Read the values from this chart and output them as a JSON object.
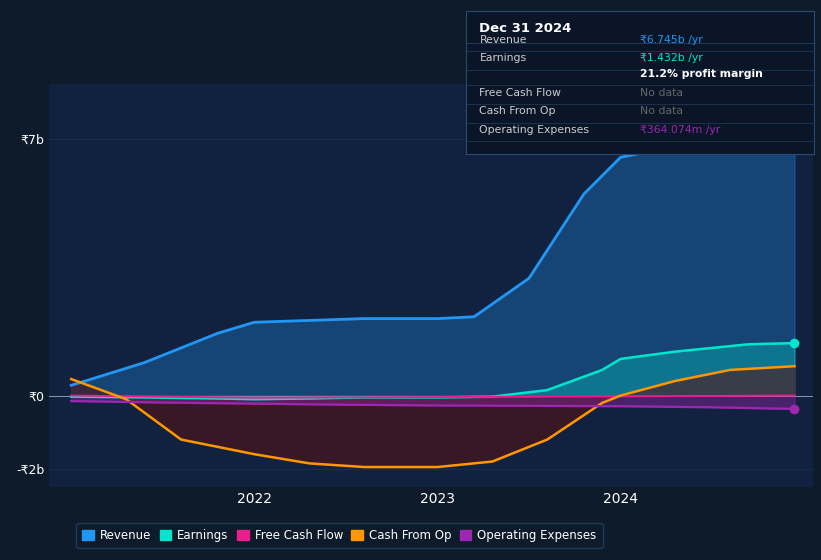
{
  "bg_color": "#0d1b2a",
  "plot_bg_color": "#112240",
  "grid_color": "#1a3050",
  "text_color": "#ffffff",
  "ylim": [
    -2500000000.0,
    8500000000.0
  ],
  "yticks": [
    -2000000000.0,
    0,
    7000000000.0
  ],
  "ytick_labels": [
    "-₹2b",
    "₹0",
    "₹7b"
  ],
  "xtick_labels": [
    "2022",
    "2023",
    "2024"
  ],
  "series": {
    "revenue": {
      "color": "#2196f3",
      "label": "Revenue",
      "x": [
        2021.0,
        2021.4,
        2021.8,
        2022.0,
        2022.3,
        2022.6,
        2023.0,
        2023.2,
        2023.5,
        2023.8,
        2024.0,
        2024.3,
        2024.7,
        2024.95
      ],
      "y": [
        280000000.0,
        900000000.0,
        1700000000.0,
        2000000000.0,
        2050000000.0,
        2100000000.0,
        2100000000.0,
        2150000000.0,
        3200000000.0,
        5500000000.0,
        6500000000.0,
        6800000000.0,
        6850000000.0,
        6745000000.0
      ]
    },
    "earnings": {
      "color": "#00e5cc",
      "label": "Earnings",
      "x": [
        2021.0,
        2021.4,
        2021.8,
        2022.0,
        2022.3,
        2022.6,
        2023.0,
        2023.3,
        2023.6,
        2023.9,
        2024.0,
        2024.3,
        2024.7,
        2024.95
      ],
      "y": [
        -30000000.0,
        -50000000.0,
        -80000000.0,
        -100000000.0,
        -80000000.0,
        -50000000.0,
        -50000000.0,
        -30000000.0,
        150000000.0,
        700000000.0,
        1000000000.0,
        1200000000.0,
        1400000000.0,
        1432000000.0
      ]
    },
    "free_cash_flow": {
      "color": "#e91e8c",
      "label": "Free Cash Flow",
      "x": [
        2021.0,
        2021.5,
        2022.0,
        2022.5,
        2023.0,
        2023.5,
        2024.0,
        2024.5,
        2024.95
      ],
      "y": [
        0.0,
        -30000000.0,
        -60000000.0,
        -50000000.0,
        -40000000.0,
        -30000000.0,
        -20000000.0,
        -10000000.0,
        0.0
      ]
    },
    "cash_from_op": {
      "color": "#ff9800",
      "label": "Cash From Op",
      "x": [
        2021.0,
        2021.3,
        2021.6,
        2022.0,
        2022.3,
        2022.6,
        2023.0,
        2023.3,
        2023.6,
        2023.9,
        2024.0,
        2024.3,
        2024.6,
        2024.95
      ],
      "y": [
        450000000.0,
        -100000000.0,
        -1200000000.0,
        -1600000000.0,
        -1850000000.0,
        -1950000000.0,
        -1950000000.0,
        -1800000000.0,
        -1200000000.0,
        -200000000.0,
        0.0,
        400000000.0,
        700000000.0,
        800000000.0
      ]
    },
    "operating_expenses": {
      "color": "#9c27b0",
      "label": "Operating Expenses",
      "x": [
        2021.0,
        2021.5,
        2022.0,
        2022.5,
        2023.0,
        2023.5,
        2024.0,
        2024.5,
        2024.95
      ],
      "y": [
        -150000000.0,
        -190000000.0,
        -220000000.0,
        -250000000.0,
        -270000000.0,
        -280000000.0,
        -290000000.0,
        -320000000.0,
        -364000000.0
      ]
    }
  },
  "legend_items": [
    {
      "label": "Revenue",
      "color": "#2196f3"
    },
    {
      "label": "Earnings",
      "color": "#00e5cc"
    },
    {
      "label": "Free Cash Flow",
      "color": "#e91e8c"
    },
    {
      "label": "Cash From Op",
      "color": "#ff9800"
    },
    {
      "label": "Operating Expenses",
      "color": "#9c27b0"
    }
  ],
  "info_box": {
    "bg_color": "#0a1628",
    "border_color": "#2a4a6f",
    "title": "Dec 31 2024",
    "rows": [
      {
        "label": "Revenue",
        "value": "₹6.745b /yr",
        "value_color": "#2196f3",
        "bold": false
      },
      {
        "label": "Earnings",
        "value": "₹1.432b /yr",
        "value_color": "#00e5cc",
        "bold": false
      },
      {
        "label": "",
        "value": "21.2% profit margin",
        "value_color": "#ffffff",
        "bold": true
      },
      {
        "label": "Free Cash Flow",
        "value": "No data",
        "value_color": "#666666",
        "bold": false
      },
      {
        "label": "Cash From Op",
        "value": "No data",
        "value_color": "#666666",
        "bold": false
      },
      {
        "label": "Operating Expenses",
        "value": "₹364.074m /yr",
        "value_color": "#9c27b0",
        "bold": false
      }
    ]
  }
}
